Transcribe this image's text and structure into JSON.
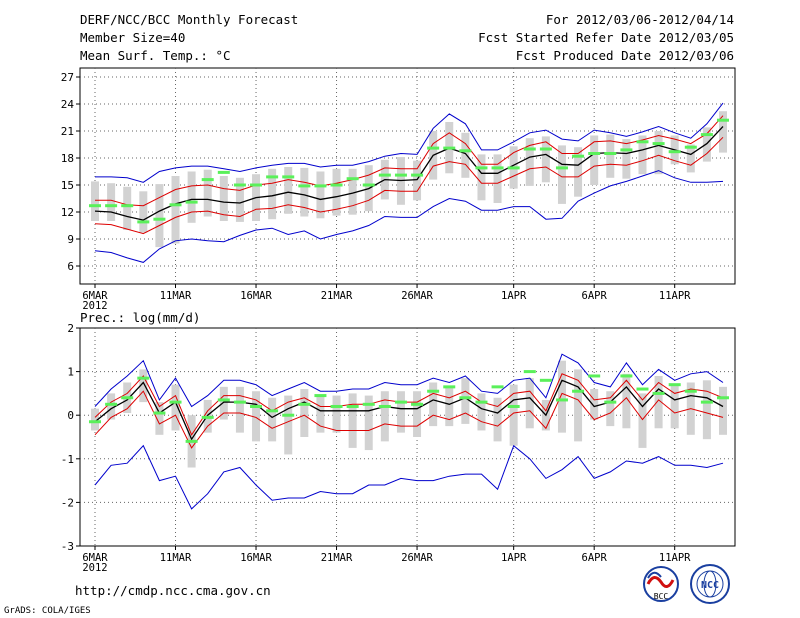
{
  "header": {
    "title": "DERF/NCC/BCC Monthly Forecast",
    "member_size": "Member Size=40",
    "variable": "Mean Surf. Temp.: °C",
    "forecast_period": "For 2012/03/06-2012/04/14",
    "started": "Fcst Started Refer Date 2012/03/05",
    "produced": "Fcst Produced Date 2012/03/06"
  },
  "footer": {
    "url": "http://cmdp.ncc.cma.gov.cn",
    "credit": "GrADS: COLA/IGES",
    "logo_left_text": "BCC",
    "logo_right_text": "NCC"
  },
  "colors": {
    "ensemble_box": "#d2d2d2",
    "observation": "#5af05a",
    "envelope": "#0000cc",
    "spread": "#dd0000",
    "mean": "#000000",
    "grid": "#666666"
  },
  "chart_data": [
    {
      "type": "line",
      "title": "Mean Surf. Temp.: °C",
      "ylim": [
        4,
        28
      ],
      "yticks": [
        6,
        9,
        12,
        15,
        18,
        21,
        24,
        27
      ],
      "xticks": [
        "6MAR",
        "11MAR",
        "16MAR",
        "21MAR",
        "26MAR",
        "1APR",
        "6APR",
        "11APR"
      ],
      "xtick_days": [
        1,
        6,
        11,
        16,
        21,
        27,
        32,
        37
      ],
      "year_label": "2012",
      "x": [
        1,
        2,
        3,
        4,
        5,
        6,
        7,
        8,
        9,
        10,
        11,
        12,
        13,
        14,
        15,
        16,
        17,
        18,
        19,
        20,
        21,
        22,
        23,
        24,
        25,
        26,
        27,
        28,
        29,
        30,
        31,
        32,
        33,
        34,
        35,
        36,
        37,
        38,
        39,
        40
      ],
      "series": [
        {
          "name": "ensemble max",
          "color": "#0000cc",
          "values": [
            15.9,
            15.9,
            15.8,
            15.3,
            16.5,
            16.9,
            17.1,
            17.1,
            16.8,
            16.5,
            16.9,
            17.2,
            17.4,
            17.4,
            17.0,
            17.2,
            17.2,
            17.6,
            18.2,
            18.5,
            18.4,
            21.3,
            22.9,
            21.8,
            18.9,
            18.9,
            19.8,
            20.8,
            21.1,
            20.1,
            19.9,
            21.1,
            20.8,
            20.4,
            20.9,
            21.5,
            20.8,
            20.2,
            21.8,
            24.1
          ]
        },
        {
          "name": "upper spread",
          "color": "#dd0000",
          "values": [
            13.3,
            13.3,
            12.8,
            12.7,
            13.6,
            14.5,
            14.9,
            15.0,
            14.6,
            14.4,
            15.0,
            15.2,
            15.6,
            15.3,
            14.9,
            15.2,
            15.6,
            16.1,
            16.9,
            16.8,
            16.8,
            19.6,
            20.8,
            19.6,
            17.3,
            17.3,
            18.6,
            19.4,
            19.8,
            18.5,
            18.5,
            19.8,
            19.9,
            19.6,
            20.0,
            20.5,
            20.1,
            19.6,
            20.7,
            22.7
          ]
        },
        {
          "name": "ensemble mean",
          "color": "#000000",
          "values": [
            12.1,
            12.0,
            11.5,
            11.1,
            12.1,
            12.9,
            13.4,
            13.4,
            13.1,
            13.0,
            13.6,
            13.8,
            14.2,
            13.9,
            13.4,
            13.7,
            14.1,
            14.6,
            15.6,
            15.5,
            15.6,
            18.3,
            19.1,
            18.5,
            16.3,
            16.3,
            17.2,
            18.1,
            18.4,
            17.3,
            17.2,
            18.5,
            18.6,
            18.5,
            18.9,
            19.4,
            18.9,
            18.4,
            19.6,
            21.5
          ]
        },
        {
          "name": "lower spread",
          "color": "#dd0000",
          "values": [
            10.7,
            10.6,
            10.1,
            9.6,
            10.5,
            11.4,
            12.0,
            12.1,
            11.7,
            11.5,
            12.3,
            12.4,
            12.8,
            12.5,
            12.0,
            12.3,
            12.7,
            13.3,
            14.4,
            14.3,
            14.3,
            17.1,
            17.6,
            17.3,
            15.2,
            15.2,
            16.0,
            16.8,
            17.0,
            15.9,
            15.9,
            17.1,
            17.3,
            17.2,
            17.7,
            18.3,
            17.7,
            17.2,
            18.5,
            20.3
          ]
        },
        {
          "name": "ensemble min",
          "color": "#0000cc",
          "values": [
            7.7,
            7.5,
            6.9,
            6.4,
            7.9,
            8.8,
            9.0,
            8.8,
            8.7,
            9.4,
            10.0,
            10.2,
            9.5,
            9.9,
            9.0,
            9.5,
            9.9,
            10.5,
            11.5,
            11.4,
            11.4,
            12.6,
            13.5,
            13.2,
            12.2,
            12.2,
            12.6,
            12.6,
            11.2,
            11.3,
            13.2,
            14.1,
            14.9,
            15.4,
            16.0,
            16.6,
            15.8,
            15.3,
            15.3,
            15.4
          ]
        }
      ],
      "box_low": [
        11.0,
        11.0,
        10.0,
        9.7,
        8.1,
        8.5,
        10.8,
        11.5,
        11.0,
        10.9,
        11.0,
        11.2,
        11.8,
        11.5,
        11.3,
        11.6,
        11.7,
        12.1,
        13.4,
        12.8,
        13.3,
        15.6,
        16.3,
        15.8,
        13.3,
        13.0,
        14.6,
        14.9,
        15.3,
        12.9,
        13.7,
        15.0,
        15.8,
        15.7,
        16.2,
        16.2,
        17.3,
        16.4,
        17.6,
        18.6
      ],
      "box_high": [
        15.4,
        15.2,
        14.8,
        14.3,
        15.1,
        16.0,
        16.5,
        16.7,
        16.0,
        15.8,
        16.2,
        16.8,
        17.0,
        16.9,
        16.5,
        16.8,
        16.8,
        17.2,
        17.8,
        18.1,
        17.7,
        21.0,
        22.0,
        20.8,
        18.4,
        18.4,
        19.3,
        20.2,
        20.4,
        19.4,
        19.2,
        20.5,
        20.6,
        20.1,
        20.5,
        21.0,
        20.5,
        19.5,
        21.4,
        23.2
      ],
      "observed": [
        12.7,
        12.7,
        12.7,
        10.9,
        11.2,
        12.8,
        13.1,
        15.6,
        16.4,
        15.0,
        15.0,
        15.9,
        15.9,
        14.9,
        14.9,
        15.0,
        15.7,
        15.0,
        16.1,
        16.1,
        16.1,
        19.1,
        19.1,
        18.8,
        16.9,
        16.9,
        16.9,
        19.0,
        19.0,
        16.9,
        18.2,
        18.5,
        18.5,
        18.9,
        19.8,
        19.6,
        18.7,
        19.2,
        20.6,
        22.2
      ]
    },
    {
      "type": "line",
      "title": "Prec.: log(mm/d)",
      "ylim": [
        -3,
        2
      ],
      "yticks": [
        -3,
        -2,
        -1,
        0,
        1,
        2
      ],
      "xticks": [
        "6MAR",
        "11MAR",
        "16MAR",
        "21MAR",
        "26MAR",
        "1APR",
        "6APR",
        "11APR"
      ],
      "xtick_days": [
        1,
        6,
        11,
        16,
        21,
        27,
        32,
        37
      ],
      "year_label": "2012",
      "x": [
        1,
        2,
        3,
        4,
        5,
        6,
        7,
        8,
        9,
        10,
        11,
        12,
        13,
        14,
        15,
        16,
        17,
        18,
        19,
        20,
        21,
        22,
        23,
        24,
        25,
        26,
        27,
        28,
        29,
        30,
        31,
        32,
        33,
        34,
        35,
        36,
        37,
        38,
        39,
        40
      ],
      "series": [
        {
          "name": "ensemble max",
          "color": "#0000cc",
          "values": [
            0.2,
            0.6,
            0.9,
            1.25,
            0.35,
            0.85,
            0.2,
            0.45,
            0.8,
            0.8,
            0.7,
            0.45,
            0.6,
            0.75,
            0.55,
            0.55,
            0.6,
            0.6,
            0.75,
            0.7,
            0.7,
            0.85,
            0.75,
            0.9,
            0.55,
            0.5,
            0.8,
            0.85,
            0.4,
            1.4,
            1.2,
            0.75,
            0.65,
            1.2,
            0.7,
            1.05,
            0.8,
            0.95,
            1.0,
            0.75
          ]
        },
        {
          "name": "upper spread",
          "color": "#dd0000",
          "values": [
            -0.05,
            0.3,
            0.5,
            0.9,
            0.2,
            0.45,
            -0.45,
            0.1,
            0.45,
            0.45,
            0.35,
            0.1,
            0.3,
            0.4,
            0.2,
            0.2,
            0.25,
            0.25,
            0.35,
            0.3,
            0.3,
            0.5,
            0.4,
            0.55,
            0.3,
            0.2,
            0.5,
            0.55,
            0.1,
            0.95,
            0.8,
            0.35,
            0.4,
            0.8,
            0.35,
            0.75,
            0.5,
            0.6,
            0.55,
            0.4
          ]
        },
        {
          "name": "ensemble mean",
          "color": "#000000",
          "values": [
            -0.15,
            0.15,
            0.35,
            0.75,
            0.05,
            0.3,
            -0.55,
            0.0,
            0.3,
            0.3,
            0.25,
            -0.05,
            0.15,
            0.3,
            0.1,
            0.1,
            0.1,
            0.1,
            0.2,
            0.15,
            0.15,
            0.35,
            0.25,
            0.4,
            0.15,
            0.05,
            0.35,
            0.4,
            0.0,
            0.8,
            0.65,
            0.2,
            0.3,
            0.65,
            0.2,
            0.6,
            0.35,
            0.45,
            0.4,
            0.2
          ]
        },
        {
          "name": "lower spread",
          "color": "#dd0000",
          "values": [
            -0.45,
            -0.05,
            0.15,
            0.55,
            -0.2,
            0.0,
            -0.75,
            -0.25,
            0.05,
            0.05,
            -0.05,
            -0.3,
            -0.15,
            0.0,
            -0.25,
            -0.35,
            -0.35,
            -0.35,
            -0.2,
            -0.25,
            -0.25,
            0.0,
            -0.1,
            0.05,
            -0.15,
            -0.25,
            0.05,
            0.1,
            -0.3,
            0.5,
            0.35,
            -0.1,
            0.05,
            0.4,
            -0.1,
            0.35,
            0.05,
            0.15,
            0.05,
            -0.05
          ]
        },
        {
          "name": "ensemble min",
          "color": "#0000cc",
          "values": [
            -1.6,
            -1.15,
            -1.1,
            -0.7,
            -1.5,
            -1.4,
            -2.15,
            -1.8,
            -1.3,
            -1.2,
            -1.6,
            -1.95,
            -1.9,
            -1.9,
            -1.75,
            -1.8,
            -1.8,
            -1.6,
            -1.6,
            -1.45,
            -1.5,
            -1.5,
            -1.4,
            -1.35,
            -1.35,
            -1.7,
            -0.7,
            -1.0,
            -1.45,
            -1.25,
            -0.95,
            -1.45,
            -1.3,
            -1.05,
            -1.1,
            -0.95,
            -1.15,
            -1.15,
            -1.2,
            -1.1
          ]
        }
      ],
      "box_low": [
        -0.35,
        -0.1,
        0.05,
        0.3,
        -0.45,
        -0.35,
        -1.2,
        -0.4,
        -0.1,
        -0.4,
        -0.6,
        -0.6,
        -0.9,
        -0.5,
        -0.4,
        -0.4,
        -0.75,
        -0.8,
        -0.6,
        -0.4,
        -0.5,
        -0.25,
        -0.25,
        -0.2,
        -0.35,
        -0.6,
        -0.7,
        -0.3,
        -0.35,
        -0.4,
        -0.6,
        -0.1,
        -0.25,
        -0.3,
        -0.75,
        -0.3,
        -0.3,
        -0.45,
        -0.55,
        -0.45
      ],
      "box_high": [
        0.15,
        0.5,
        0.75,
        1.05,
        0.3,
        0.7,
        0.0,
        0.35,
        0.65,
        0.65,
        0.55,
        0.4,
        0.45,
        0.6,
        0.45,
        0.45,
        0.5,
        0.45,
        0.55,
        0.55,
        0.55,
        0.75,
        0.65,
        0.85,
        0.5,
        0.4,
        0.7,
        0.85,
        0.35,
        1.25,
        1.05,
        0.6,
        0.55,
        0.95,
        0.5,
        0.9,
        0.7,
        0.75,
        0.8,
        0.65
      ],
      "observed": [
        -0.15,
        0.25,
        0.4,
        0.85,
        0.05,
        0.3,
        -0.6,
        -0.05,
        0.35,
        0.3,
        0.2,
        0.1,
        0.0,
        0.25,
        0.45,
        0.2,
        0.2,
        0.25,
        0.2,
        0.3,
        0.25,
        0.55,
        0.65,
        0.4,
        0.3,
        0.65,
        0.2,
        1.0,
        0.8,
        0.35,
        0.55,
        0.9,
        0.3,
        0.9,
        0.6,
        0.5,
        0.7,
        0.55,
        0.3,
        0.4
      ]
    }
  ]
}
